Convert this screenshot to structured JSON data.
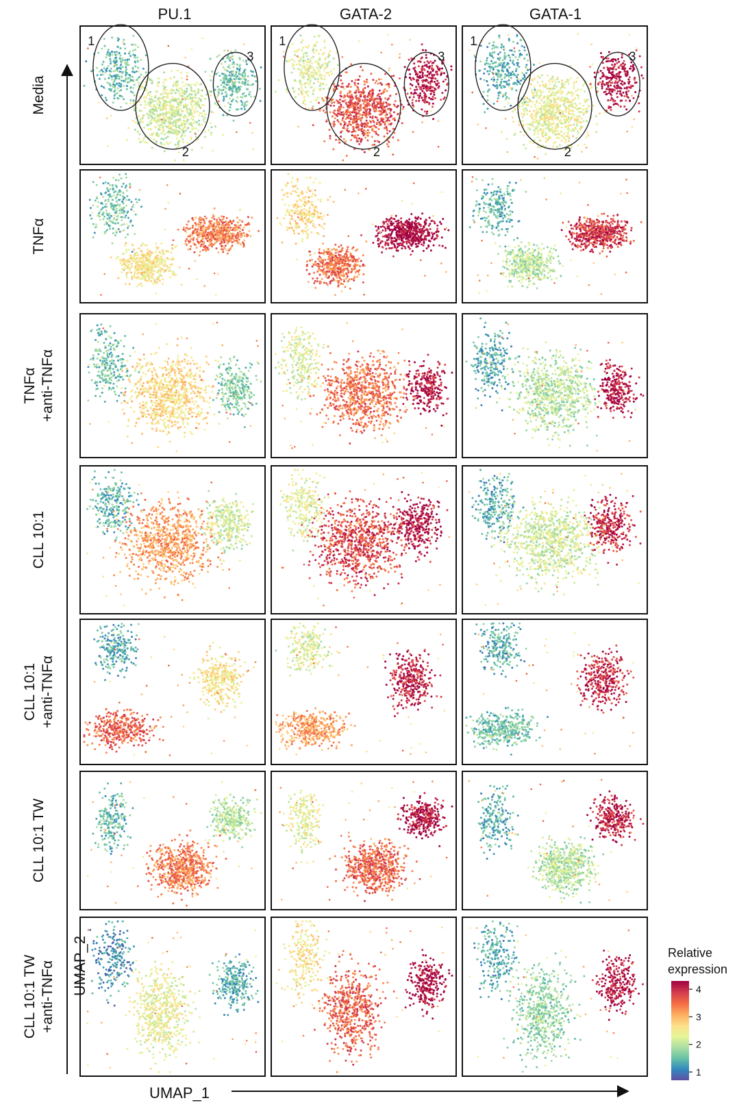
{
  "chart_data": {
    "type": "scatter",
    "columns": [
      "PU.1",
      "GATA-2",
      "GATA-1"
    ],
    "rows": [
      [
        "Media"
      ],
      [
        "TNFα"
      ],
      [
        "TNFα",
        "+anti-TNFα"
      ],
      [
        "CLL 10:1"
      ],
      [
        "CLL 10:1",
        "+anti-TNFα"
      ],
      [
        "CLL 10:1 TW"
      ],
      [
        "CLL 10:1 TW",
        "+anti-TNFα"
      ]
    ],
    "xlabel": "UMAP_1",
    "ylabel": "UMAP_2",
    "colorbar": {
      "title_lines": [
        "Relative",
        "expression"
      ],
      "range": [
        0.7,
        4.3
      ],
      "ticks": [
        1,
        2,
        3,
        4
      ],
      "colors": [
        "#5e4fa2",
        "#3288bd",
        "#66c2a5",
        "#abdda4",
        "#e6f598",
        "#fee08b",
        "#fdae61",
        "#f46d43",
        "#d53e4f",
        "#9e0142"
      ]
    },
    "cluster_labels": [
      "1",
      "2",
      "3"
    ],
    "cluster_expression_estimate": [
      [
        [
          1.5,
          2.2,
          1.6
        ],
        [
          2.3,
          3.7,
          4.2
        ],
        [
          1.4,
          2.4,
          4.2
        ]
      ],
      [
        [
          1.6,
          2.6,
          3.4
        ],
        [
          2.7,
          3.5,
          4.3
        ],
        [
          1.5,
          2.0,
          3.9
        ]
      ],
      [
        [
          1.6,
          2.7,
          1.7
        ],
        [
          2.3,
          3.5,
          4.2
        ],
        [
          1.4,
          2.0,
          4.2
        ]
      ],
      [
        [
          1.5,
          3.2,
          2.2
        ],
        [
          2.3,
          3.8,
          4.2
        ],
        [
          1.4,
          2.2,
          4.0
        ]
      ],
      [
        [
          1.4,
          3.6,
          2.6
        ],
        [
          2.3,
          3.2,
          4.1
        ],
        [
          1.4,
          1.6,
          4.0
        ]
      ],
      [
        [
          1.5,
          3.4,
          2.0
        ],
        [
          2.4,
          3.6,
          4.2
        ],
        [
          1.4,
          2.0,
          4.1
        ]
      ],
      [
        [
          1.2,
          2.4,
          1.4
        ],
        [
          2.6,
          3.6,
          4.3
        ],
        [
          1.4,
          1.8,
          4.2
        ]
      ]
    ]
  }
}
